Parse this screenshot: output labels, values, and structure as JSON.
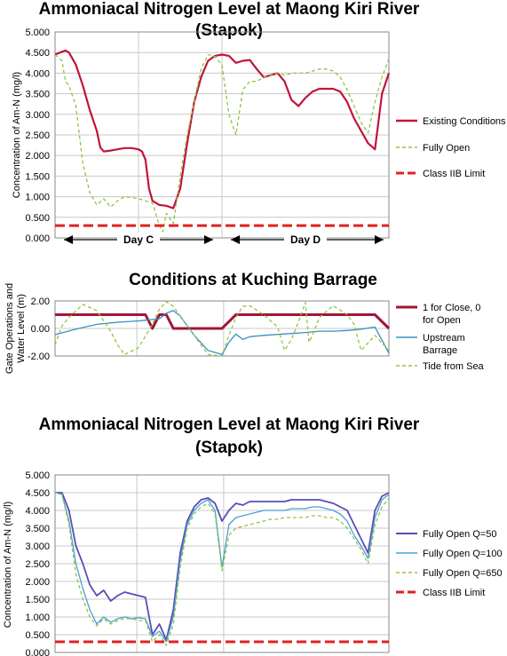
{
  "chart_data": [
    {
      "type": "line",
      "title_line1": "Ammoniacal Nitrogen Level at Maong Kiri River",
      "title_line2": "(Stapok)",
      "ylabel": "Concentration of Am-N (mg/l)",
      "ylim": [
        0,
        5
      ],
      "yticks": [
        "0.000",
        "0.500",
        "1.000",
        "1.500",
        "2.000",
        "2.500",
        "3.000",
        "3.500",
        "4.000",
        "4.500",
        "5.000"
      ],
      "grid": true,
      "legend_position": "right",
      "annotations": [
        {
          "label": "Day C",
          "x_range": [
            0,
            24
          ]
        },
        {
          "label": "Day D",
          "x_range": [
            26,
            48
          ]
        }
      ],
      "series": [
        {
          "name": "Existing Conditions",
          "color": "#c0143c",
          "style": "solid",
          "x": [
            0,
            1,
            1.5,
            2,
            3,
            4,
            5,
            6,
            6.5,
            7,
            8,
            9,
            10,
            11,
            12,
            12.5,
            13,
            13.5,
            14,
            15,
            16,
            17,
            18,
            19,
            20,
            21,
            22,
            23,
            24,
            25,
            26,
            27,
            28,
            29,
            30,
            31,
            32,
            33,
            34,
            35,
            36,
            37,
            38,
            39,
            40,
            41,
            42,
            43,
            44,
            45,
            46,
            47,
            48
          ],
          "y": [
            4.45,
            4.52,
            4.55,
            4.5,
            4.2,
            3.7,
            3.1,
            2.6,
            2.2,
            2.1,
            2.12,
            2.15,
            2.18,
            2.18,
            2.15,
            2.1,
            1.9,
            1.2,
            0.9,
            0.8,
            0.78,
            0.72,
            1.2,
            2.3,
            3.3,
            3.9,
            4.3,
            4.42,
            4.45,
            4.42,
            4.25,
            4.3,
            4.32,
            4.1,
            3.9,
            3.95,
            4.0,
            3.8,
            3.35,
            3.2,
            3.4,
            3.55,
            3.62,
            3.62,
            3.62,
            3.55,
            3.3,
            2.9,
            2.6,
            2.3,
            2.15,
            3.5,
            4.0
          ]
        },
        {
          "name": "Fully Open",
          "color": "#8dc63f",
          "style": "dashed",
          "x": [
            0,
            1,
            1.5,
            2,
            3,
            4,
            5,
            6,
            7,
            8,
            9,
            10,
            11,
            12,
            13,
            14,
            15,
            15.5,
            16,
            17,
            18,
            19,
            20,
            21,
            22,
            23,
            24,
            25,
            26,
            27,
            28,
            29,
            30,
            31,
            32,
            33,
            34,
            35,
            36,
            37,
            38,
            39,
            40,
            41,
            42,
            43,
            44,
            45,
            46,
            47,
            48
          ],
          "y": [
            4.45,
            4.3,
            3.8,
            3.7,
            3.2,
            1.8,
            1.1,
            0.8,
            0.95,
            0.75,
            0.9,
            1.0,
            0.98,
            0.95,
            0.9,
            0.85,
            0.3,
            0.15,
            0.6,
            0.35,
            1.5,
            2.5,
            3.3,
            4.1,
            4.45,
            4.4,
            4.2,
            3.0,
            2.5,
            3.6,
            3.8,
            3.8,
            3.9,
            3.95,
            4.0,
            3.95,
            4.0,
            4.0,
            4.0,
            4.05,
            4.1,
            4.1,
            4.05,
            3.9,
            3.6,
            3.2,
            2.8,
            2.55,
            3.3,
            3.9,
            4.35
          ]
        },
        {
          "name": "Class IIB Limit",
          "color": "#e02020",
          "style": "longdash",
          "x": [
            0,
            48
          ],
          "y": [
            0.3,
            0.3
          ]
        }
      ]
    },
    {
      "type": "line",
      "title_line1": "Conditions at Kuching Barrage",
      "ylabel_line1": "Gate Operations and",
      "ylabel_line2": "Water Level (m)",
      "ylim": [
        -2,
        2
      ],
      "yticks": [
        "-2.00",
        "0.00",
        "2.00"
      ],
      "grid": true,
      "legend_position": "right",
      "series": [
        {
          "name_line1": "1 for Close, 0",
          "name_line2": "for Open",
          "color": "#a01538",
          "style": "solid",
          "x": [
            0,
            13,
            14,
            15,
            16,
            17,
            18,
            24,
            26,
            46,
            48
          ],
          "y": [
            1,
            1,
            0,
            1,
            1,
            0,
            0,
            0,
            1,
            1,
            0
          ]
        },
        {
          "name_line1": "Upstream",
          "name_line2": "Barrage",
          "color": "#3a8fbf",
          "style": "solid",
          "x": [
            0,
            3,
            6,
            9,
            12,
            13,
            14,
            15,
            16,
            17,
            18,
            20,
            22,
            24,
            25,
            26,
            27,
            28,
            30,
            33,
            36,
            38,
            40,
            42,
            44,
            46,
            48
          ],
          "y": [
            -0.45,
            -0.05,
            0.3,
            0.45,
            0.55,
            0.6,
            0.65,
            0.7,
            1.1,
            1.3,
            0.9,
            -0.5,
            -1.6,
            -1.9,
            -1.0,
            -0.4,
            -0.8,
            -0.6,
            -0.5,
            -0.4,
            -0.3,
            -0.2,
            -0.2,
            -0.15,
            -0.05,
            0.1,
            -1.8
          ]
        },
        {
          "name": "Tide from Sea",
          "color": "#8dc63f",
          "style": "dashed",
          "x": [
            0,
            1,
            2,
            4,
            6,
            8,
            9,
            10,
            12,
            14,
            15,
            16,
            17,
            18,
            20,
            22,
            24,
            25,
            26,
            27,
            28,
            30,
            32,
            33,
            34,
            35,
            36,
            36.5,
            37,
            38,
            40,
            42,
            43,
            44,
            46,
            48
          ],
          "y": [
            -1.2,
            0.2,
            0.8,
            1.75,
            1.3,
            -0.2,
            -1.2,
            -1.9,
            -1.4,
            0.3,
            1.4,
            1.95,
            1.6,
            0.9,
            -0.5,
            -1.9,
            -2.0,
            -0.5,
            0.8,
            1.6,
            1.65,
            1.0,
            0.1,
            -1.6,
            -0.8,
            0.5,
            1.9,
            -1.0,
            -0.5,
            0.8,
            1.65,
            1.0,
            0.3,
            -1.6,
            -0.5,
            -1.6
          ]
        }
      ]
    },
    {
      "type": "line",
      "title_line1": "Ammoniacal Nitrogen Level at Maong Kiri River",
      "title_line2": "(Stapok)",
      "ylabel": "Concentration of Am-N (mg/l)",
      "ylim": [
        0,
        5
      ],
      "yticks": [
        "0.000",
        "0.500",
        "1.000",
        "1.500",
        "2.000",
        "2.500",
        "3.000",
        "3.500",
        "4.000",
        "4.500",
        "5.000"
      ],
      "grid": true,
      "legend_position": "right",
      "series": [
        {
          "name": "Fully Open Q=50",
          "color": "#5b4cb5",
          "style": "solid",
          "x": [
            0,
            1,
            2,
            3,
            4,
            5,
            6,
            7,
            8,
            9,
            10,
            11,
            12,
            13,
            14,
            15,
            16,
            17,
            18,
            19,
            20,
            21,
            22,
            23,
            24,
            25,
            26,
            27,
            28,
            29,
            30,
            31,
            32,
            33,
            34,
            35,
            36,
            37,
            38,
            39,
            40,
            41,
            42,
            43,
            44,
            45,
            46,
            47,
            48
          ],
          "y": [
            4.5,
            4.5,
            4.0,
            3.0,
            2.5,
            1.9,
            1.6,
            1.75,
            1.45,
            1.6,
            1.7,
            1.65,
            1.6,
            1.55,
            0.5,
            0.8,
            0.35,
            1.2,
            2.8,
            3.7,
            4.1,
            4.3,
            4.35,
            4.2,
            3.7,
            4.0,
            4.2,
            4.15,
            4.25,
            4.25,
            4.25,
            4.25,
            4.25,
            4.25,
            4.3,
            4.3,
            4.3,
            4.3,
            4.3,
            4.25,
            4.2,
            4.1,
            4.0,
            3.6,
            3.2,
            2.8,
            4.0,
            4.4,
            4.5
          ]
        },
        {
          "name": "Fully Open Q=100",
          "color": "#4a9fd8",
          "style": "solid",
          "x": [
            0,
            1,
            2,
            3,
            4,
            5,
            6,
            7,
            8,
            9,
            10,
            11,
            12,
            13,
            14,
            15,
            16,
            17,
            18,
            19,
            20,
            21,
            22,
            23,
            24,
            25,
            26,
            27,
            28,
            29,
            30,
            31,
            32,
            33,
            34,
            35,
            36,
            37,
            38,
            39,
            40,
            41,
            42,
            43,
            44,
            45,
            46,
            47,
            48
          ],
          "y": [
            4.5,
            4.45,
            3.7,
            2.5,
            1.8,
            1.2,
            0.8,
            1.0,
            0.85,
            0.95,
            1.0,
            0.95,
            0.98,
            0.95,
            0.45,
            0.6,
            0.3,
            1.0,
            2.6,
            3.6,
            4.0,
            4.2,
            4.3,
            4.0,
            2.4,
            3.6,
            3.8,
            3.85,
            3.9,
            3.95,
            4.0,
            4.0,
            4.0,
            4.0,
            4.05,
            4.05,
            4.05,
            4.1,
            4.1,
            4.05,
            4.0,
            3.9,
            3.7,
            3.3,
            3.0,
            2.65,
            3.8,
            4.3,
            4.45
          ]
        },
        {
          "name": "Fully Open Q=650",
          "color": "#8dc63f",
          "style": "dashed",
          "x": [
            0,
            1,
            2,
            3,
            4,
            5,
            6,
            7,
            8,
            9,
            10,
            11,
            12,
            13,
            14,
            15,
            16,
            17,
            18,
            19,
            20,
            21,
            22,
            23,
            24,
            25,
            26,
            27,
            28,
            29,
            30,
            31,
            32,
            33,
            34,
            35,
            36,
            37,
            38,
            39,
            40,
            41,
            42,
            43,
            44,
            45,
            46,
            47,
            48
          ],
          "y": [
            4.5,
            4.45,
            3.6,
            2.2,
            1.5,
            1.0,
            0.75,
            0.95,
            0.8,
            0.9,
            0.95,
            0.95,
            0.9,
            0.9,
            0.3,
            0.5,
            0.2,
            0.8,
            2.4,
            3.5,
            3.9,
            4.1,
            4.2,
            3.9,
            2.3,
            3.3,
            3.5,
            3.55,
            3.6,
            3.65,
            3.7,
            3.75,
            3.75,
            3.8,
            3.8,
            3.8,
            3.8,
            3.85,
            3.85,
            3.8,
            3.8,
            3.7,
            3.5,
            3.2,
            2.9,
            2.5,
            3.6,
            4.1,
            4.35
          ]
        },
        {
          "name": "Class IIB Limit",
          "color": "#e02020",
          "style": "longdash",
          "x": [
            0,
            48
          ],
          "y": [
            0.3,
            0.3
          ]
        }
      ]
    }
  ]
}
